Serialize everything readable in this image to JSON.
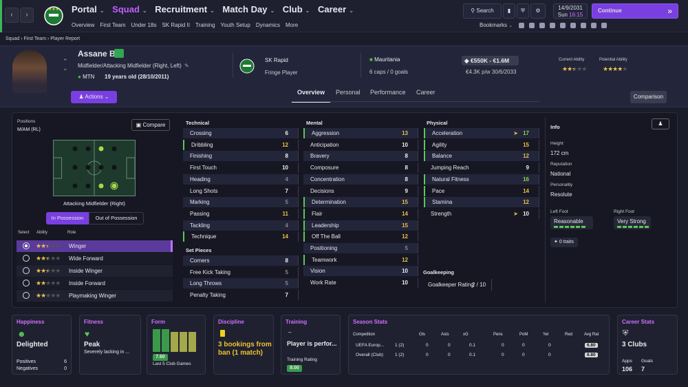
{
  "nav": {
    "items": [
      "Portal",
      "Squad",
      "Recruitment",
      "Match Day",
      "Club",
      "Career"
    ],
    "sub": [
      "Overview",
      "First Team",
      "Under 18s",
      "SK Rapid II",
      "Training",
      "Youth Setup",
      "Dynamics",
      "More"
    ],
    "search": "Search",
    "date": "14/9/2031",
    "day": "Sun",
    "time": "16:15",
    "continue": "Continue",
    "bookmarks": "Bookmarks"
  },
  "breadcrumb": [
    "Squad",
    "First Team",
    "Player Report"
  ],
  "player": {
    "name": "Assane Ba",
    "position": "Midfielder/Attacking Midfielder (Right, Left)",
    "club_short": "MTN",
    "age": "19 years old (28/10/2011)",
    "club": "SK Rapid",
    "status": "Fringe Player",
    "nation": "Mauritania",
    "caps": "6 caps / 0 goals",
    "value": "€550K - €1.6M",
    "wage": "€4.3K p/w 30/6/2033",
    "ca_label": "Current Ability",
    "pa_label": "Potential Ability",
    "ca": 2.5,
    "pa": 4,
    "actions": "Actions"
  },
  "tabs": [
    "Overview",
    "Personal",
    "Performance",
    "Career"
  ],
  "comparison": "Comparison",
  "positions": {
    "label": "Positions",
    "value": "M/AM (RL)",
    "compare": "Compare",
    "role_name": "Attacking Midfielder (Right)",
    "in_poss": "In Possession",
    "out_poss": "Out of Possession",
    "headers": [
      "Select",
      "Ability",
      "Role"
    ],
    "roles": [
      {
        "name": "Winger",
        "stars": 2.5,
        "sel": true
      },
      {
        "name": "Wide Forward",
        "stars": 2.5,
        "sel": false
      },
      {
        "name": "Inside Winger",
        "stars": 2.5,
        "sel": false
      },
      {
        "name": "Inside Forward",
        "stars": 2,
        "sel": false
      },
      {
        "name": "Playmaking Winger",
        "stars": 2,
        "sel": false
      }
    ]
  },
  "technical": {
    "title": "Technical",
    "rows": [
      [
        "Crossing",
        "6"
      ],
      [
        "Dribbling",
        "12"
      ],
      [
        "Finishing",
        "8"
      ],
      [
        "First Touch",
        "10"
      ],
      [
        "Heading",
        "4"
      ],
      [
        "Long Shots",
        "7"
      ],
      [
        "Marking",
        "5"
      ],
      [
        "Passing",
        "11"
      ],
      [
        "Tackling",
        "4"
      ],
      [
        "Technique",
        "14"
      ]
    ]
  },
  "setpieces": {
    "title": "Set Pieces",
    "rows": [
      [
        "Corners",
        "8"
      ],
      [
        "Free Kick Taking",
        "5"
      ],
      [
        "Long Throws",
        "5"
      ],
      [
        "Penalty Taking",
        "7"
      ]
    ]
  },
  "mental": {
    "title": "Mental",
    "rows": [
      [
        "Aggression",
        "13"
      ],
      [
        "Anticipation",
        "10"
      ],
      [
        "Bravery",
        "8"
      ],
      [
        "Composure",
        "8"
      ],
      [
        "Concentration",
        "8"
      ],
      [
        "Decisions",
        "9"
      ],
      [
        "Determination",
        "15"
      ],
      [
        "Flair",
        "14"
      ],
      [
        "Leadership",
        "15"
      ],
      [
        "Off The Ball",
        "12"
      ],
      [
        "Positioning",
        "5"
      ],
      [
        "Teamwork",
        "12"
      ],
      [
        "Vision",
        "10"
      ],
      [
        "Work Rate",
        "10"
      ]
    ]
  },
  "physical": {
    "title": "Physical",
    "rows": [
      [
        "Acceleration",
        "17"
      ],
      [
        "Agility",
        "15"
      ],
      [
        "Balance",
        "12"
      ],
      [
        "Jumping Reach",
        "9"
      ],
      [
        "Natural Fitness",
        "16"
      ],
      [
        "Pace",
        "14"
      ],
      [
        "Stamina",
        "12"
      ],
      [
        "Strength",
        "10"
      ]
    ]
  },
  "gk": {
    "title": "Goalkeeping",
    "label": "Goalkeeper Rating",
    "value": "2 / 10"
  },
  "info": {
    "title": "Info",
    "height_l": "Height",
    "height": "172 cm",
    "rep_l": "Reputation",
    "rep": "National",
    "pers_l": "Personality",
    "pers": "Resolute",
    "lf_l": "Left Foot",
    "lf": "Reasonable",
    "rf_l": "Right Foot",
    "rf": "Very Strong",
    "traits": "0 traits"
  },
  "cards": {
    "happiness": {
      "title": "Happiness",
      "value": "Delighted",
      "pos_l": "Positives",
      "pos": "6",
      "neg_l": "Negatives",
      "neg": "0"
    },
    "fitness": {
      "title": "Fitness",
      "value": "Peak",
      "desc": "Severely lacking in ..."
    },
    "form": {
      "title": "Form",
      "rating": "7.60",
      "desc": "Last 5 Club Games"
    },
    "discipline": {
      "title": "Discipline",
      "value": "3 bookings from ban (1 match)"
    },
    "training": {
      "title": "Training",
      "value": "Player is perfor...",
      "rating_l": "Training Rating",
      "rating": "8.00"
    },
    "season": {
      "title": "Season Stats",
      "headers": [
        "Competition",
        "Gls",
        "Asts",
        "xG",
        "Pens",
        "PoM",
        "Yel",
        "Red",
        "Avg Rat"
      ],
      "rows": [
        [
          "UEFA Europ...",
          "1 (2)",
          "0",
          "0",
          "0.1",
          "0",
          "0",
          "0",
          "0",
          "6.80"
        ],
        [
          "Overall (Club)",
          "1 (2)",
          "0",
          "0",
          "0.1",
          "0",
          "0",
          "0",
          "0",
          "6.80"
        ]
      ],
      "apps": "Apps"
    },
    "career": {
      "title": "Career Stats",
      "value": "3 Clubs",
      "apps_l": "Apps",
      "apps": "106",
      "goals_l": "Goals",
      "goals": "7"
    }
  },
  "colors": {
    "accent": "#7a3fe0",
    "green": "#4fbf3f",
    "yellow": "#e8c24a"
  }
}
